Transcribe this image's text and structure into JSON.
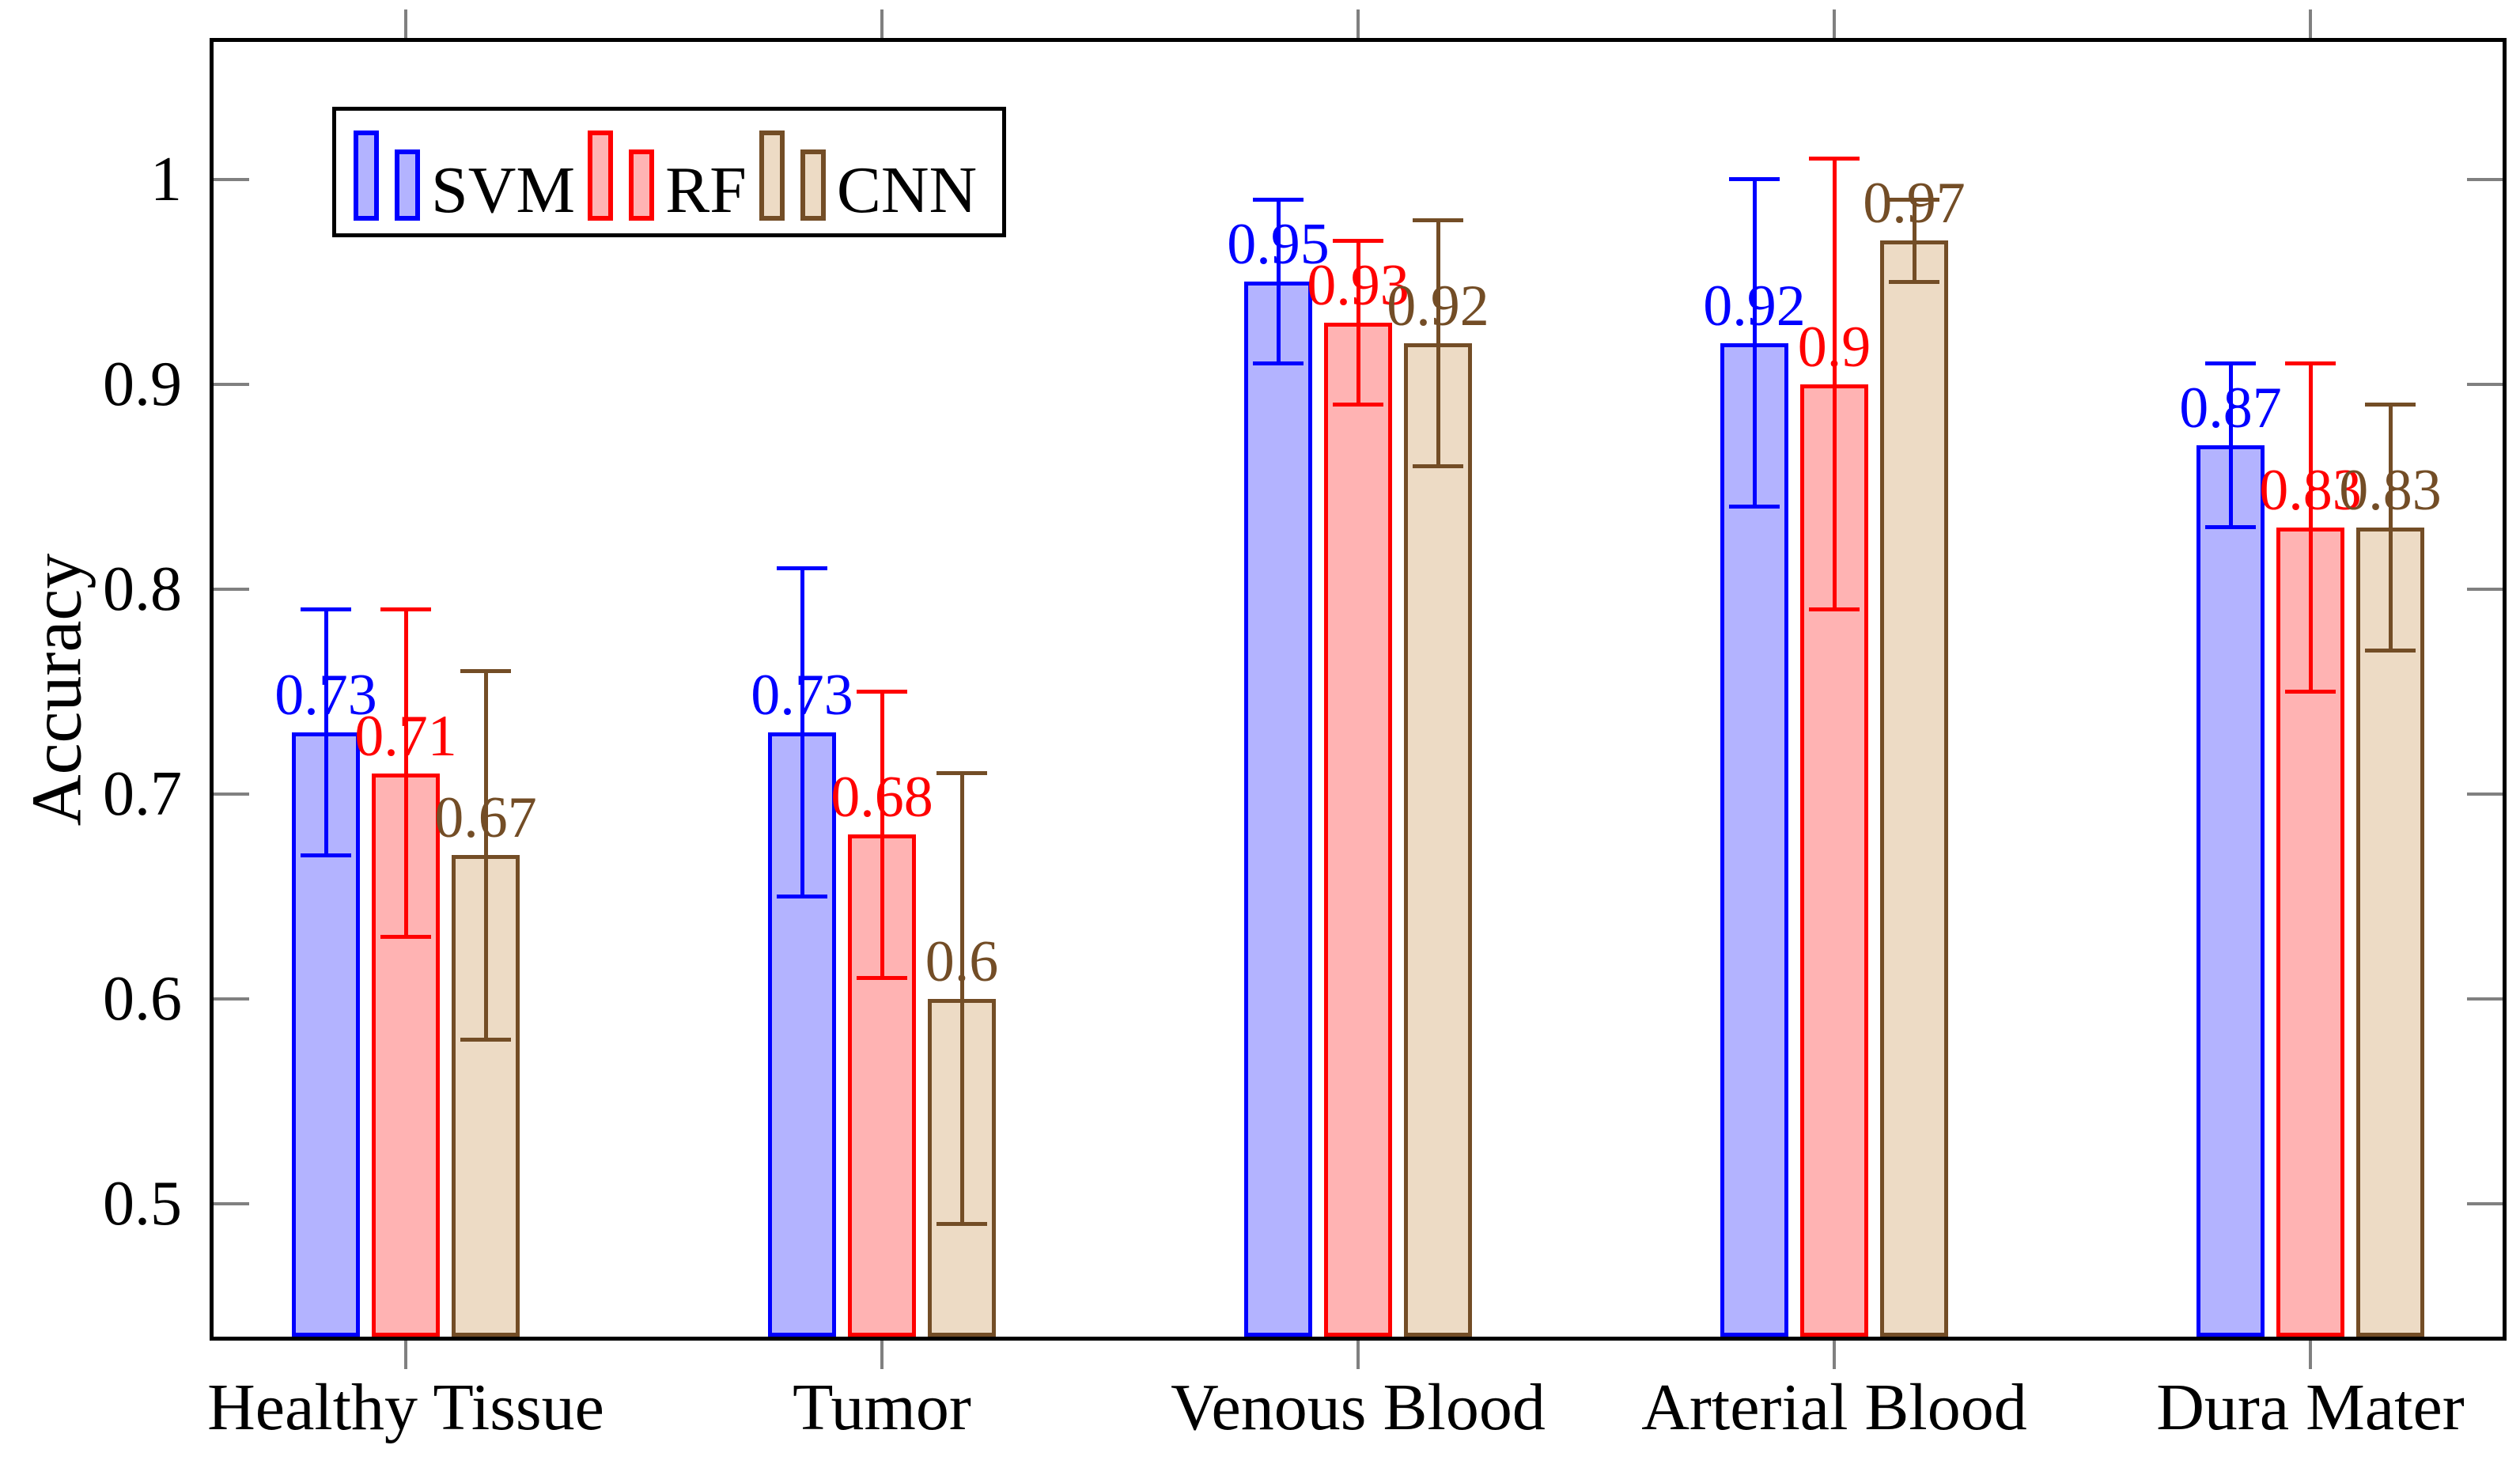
{
  "figure": {
    "background": "#ffffff",
    "axis_color": "#000000",
    "tick_color": "#808080"
  },
  "chart_data": {
    "type": "bar",
    "title": "",
    "xlabel": "",
    "ylabel": "Accuracy",
    "categories": [
      "Healthy Tissue",
      "Tumor",
      "Venous Blood",
      "Arterial Blood",
      "Dura Mater"
    ],
    "series": [
      {
        "name": "SVM",
        "stroke": "#0000ff",
        "fill": "#b3b3ff",
        "values": [
          0.73,
          0.73,
          0.95,
          0.92,
          0.87
        ],
        "value_labels": [
          "0.73",
          "0.73",
          "0.95",
          "0.92",
          "0.87"
        ],
        "error_plus": [
          0.06,
          0.08,
          0.04,
          0.08,
          0.04
        ],
        "error_minus": [
          0.06,
          0.08,
          0.04,
          0.08,
          0.04
        ]
      },
      {
        "name": "RF",
        "stroke": "#ff0000",
        "fill": "#ffb3b3",
        "values": [
          0.71,
          0.68,
          0.93,
          0.9,
          0.83
        ],
        "value_labels": [
          "0.71",
          "0.68",
          "0.93",
          "0.9",
          "0.83"
        ],
        "error_plus": [
          0.08,
          0.07,
          0.04,
          0.11,
          0.08
        ],
        "error_minus": [
          0.08,
          0.07,
          0.04,
          0.11,
          0.08
        ]
      },
      {
        "name": "CNN",
        "stroke": "#734d26",
        "fill": "#eddbc5",
        "values": [
          0.67,
          0.6,
          0.92,
          0.97,
          0.83
        ],
        "value_labels": [
          "0.67",
          "0.6",
          "0.92",
          "0.97",
          "0.83"
        ],
        "error_plus": [
          0.09,
          0.11,
          0.06,
          0.02,
          0.06
        ],
        "error_minus": [
          0.09,
          0.11,
          0.06,
          0.02,
          0.06
        ]
      }
    ],
    "yticks": {
      "values": [
        0.5,
        0.6,
        0.7,
        0.8,
        0.9,
        1
      ],
      "labels": [
        "0.5",
        "0.6",
        "0.7",
        "0.8",
        "0.9",
        "1"
      ]
    },
    "ylim": [
      0.435,
      1.067
    ],
    "grid": false,
    "legend": {
      "position": "top-left",
      "entries": [
        "SVM",
        "RF",
        "CNN"
      ]
    }
  }
}
